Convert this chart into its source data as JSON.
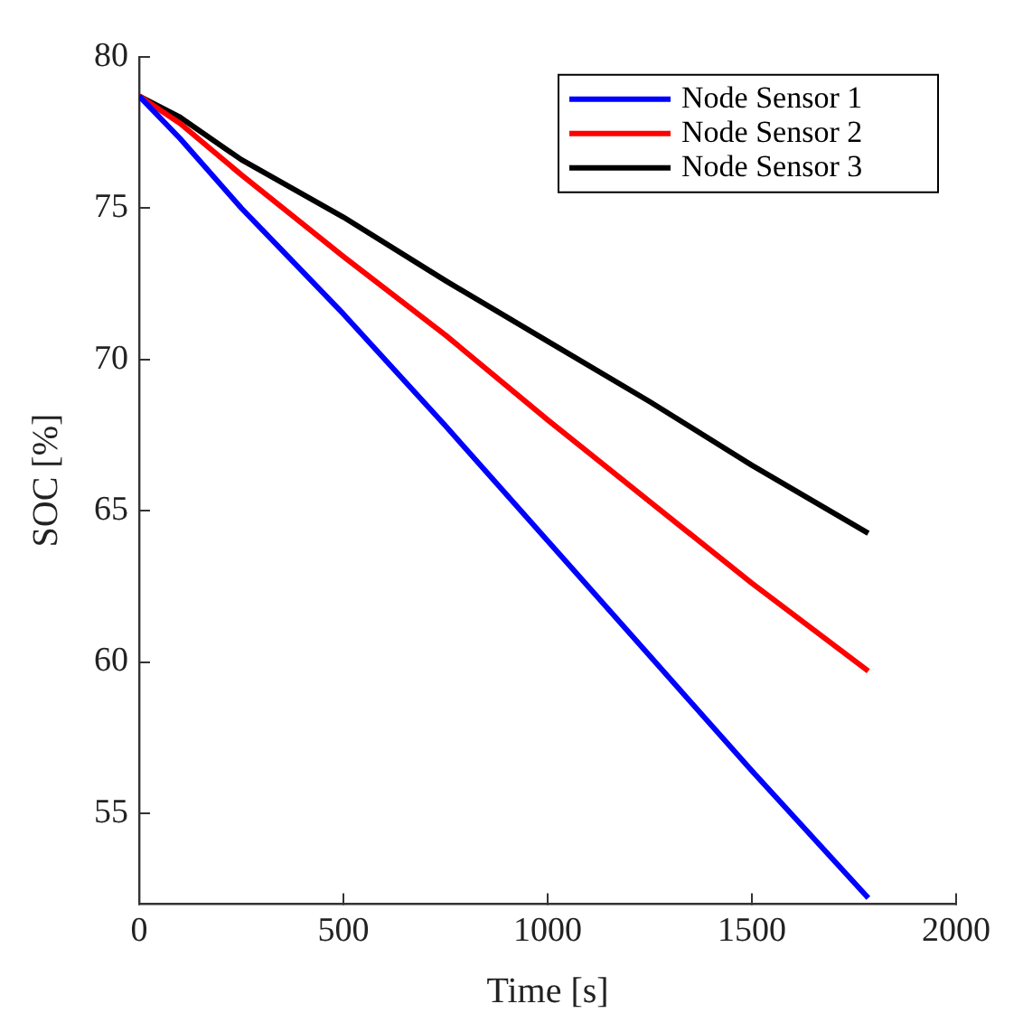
{
  "chart_data": {
    "type": "line",
    "xlabel": "Time [s]",
    "ylabel": "SOC [%]",
    "xlim": [
      0,
      2000
    ],
    "xticks": [
      0,
      500,
      1000,
      1500,
      2000
    ],
    "ylim": [
      52,
      80
    ],
    "yticks": [
      55,
      60,
      65,
      70,
      75,
      80
    ],
    "grid": false,
    "legend": "top right",
    "marker": "none",
    "line_style": "solid",
    "x": [
      0,
      100,
      250,
      500,
      750,
      1000,
      1250,
      1500,
      1785
    ],
    "series": [
      {
        "name": "Node Sensor 1",
        "color": "#0000ff",
        "values": [
          78.7,
          77.3,
          75.0,
          71.5,
          67.8,
          64.0,
          60.2,
          56.4,
          52.2
        ]
      },
      {
        "name": "Node Sensor 2",
        "color": "#ff0000",
        "values": [
          78.7,
          77.8,
          76.1,
          73.4,
          70.8,
          68.0,
          65.3,
          62.6,
          59.7
        ]
      },
      {
        "name": "Node Sensor 3",
        "color": "#000000",
        "values": [
          78.7,
          78.0,
          76.6,
          74.7,
          72.6,
          70.6,
          68.6,
          66.5,
          64.25
        ]
      }
    ]
  }
}
